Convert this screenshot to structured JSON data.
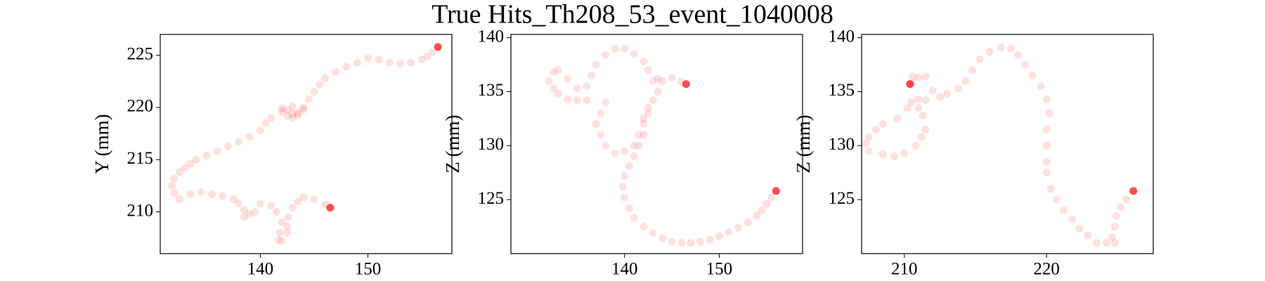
{
  "title": "True Hits_Th208_53_event_1040008",
  "chart_data": [
    {
      "type": "scatter",
      "ylabel": "Y (mm)",
      "xlim": [
        130.7,
        157.8
      ],
      "ylim": [
        206,
        227
      ],
      "xticks": [
        140,
        150
      ],
      "yticks": [
        210,
        215,
        220,
        225
      ],
      "series": [
        {
          "color": "#ff0000",
          "alpha": 0.12,
          "x": [
            156,
            155.5,
            155,
            154,
            153,
            152,
            151,
            150,
            149,
            148,
            147,
            146,
            145.5,
            145,
            144.5,
            144,
            143.5,
            143,
            142.5,
            142,
            142.5,
            143,
            143.5,
            144,
            143,
            142,
            141,
            140.5,
            140,
            139,
            138,
            137,
            136,
            135,
            134,
            133.5,
            133,
            132.5,
            132,
            131.8,
            132,
            132.5,
            133.5,
            134.5,
            135.5,
            136.5,
            137.5,
            138,
            138.5,
            139,
            138.5,
            139.5,
            140,
            141,
            141.5,
            142,
            141.8,
            141.7,
            142,
            142.5,
            142.5,
            142.6,
            143,
            143.5,
            144,
            145,
            146
          ],
          "y": [
            225.3,
            224.9,
            224.6,
            224.3,
            224.2,
            224.3,
            224.6,
            224.7,
            224.3,
            223.9,
            223.4,
            222.8,
            222.2,
            221.5,
            220.8,
            220,
            219.5,
            219.4,
            219.8,
            219.9,
            219.2,
            219,
            219.3,
            219.8,
            220.1,
            219.6,
            219,
            218.5,
            217.8,
            217.2,
            216.7,
            216.3,
            215.8,
            215.4,
            215,
            214.6,
            214.2,
            213.8,
            213.2,
            212.5,
            211.8,
            211.2,
            211.7,
            211.9,
            211.7,
            211.5,
            211.2,
            210.8,
            210.2,
            209.8,
            209.5,
            210,
            210.8,
            210.6,
            210,
            209,
            208,
            207.3,
            207.2,
            208,
            208.6,
            209.5,
            210.4,
            211,
            211.4,
            211.2,
            210.7
          ]
        },
        {
          "color": "#ff0000",
          "alpha": 0.7,
          "x": [
            156.5,
            146.5
          ],
          "y": [
            225.8,
            210.4
          ]
        }
      ]
    },
    {
      "type": "scatter",
      "ylabel": "Z (mm)",
      "xlim": [
        128,
        158.8
      ],
      "ylim": [
        120,
        140.3
      ],
      "xticks": [
        140,
        150
      ],
      "yticks": [
        125,
        130,
        135,
        140
      ],
      "series": [
        {
          "color": "#ff0000",
          "alpha": 0.12,
          "x": [
            155.5,
            155,
            154.5,
            154,
            153,
            152,
            151,
            150,
            149,
            148,
            147,
            146,
            145,
            144,
            143,
            142,
            141,
            140.5,
            140,
            139.8,
            140,
            140.5,
            141,
            141.5,
            142,
            142,
            142.5,
            143,
            143.5,
            143,
            143.5,
            144,
            145,
            146,
            142.5,
            142,
            141.5,
            141,
            140,
            139,
            138,
            137.5,
            137,
            137.5,
            138,
            136,
            135,
            134,
            133,
            132.5,
            132,
            132.5,
            133,
            134,
            135,
            136,
            136.5,
            137,
            138,
            139,
            140,
            141,
            142,
            142.5
          ],
          "y": [
            125.2,
            124.6,
            124,
            123.5,
            122.9,
            122.4,
            122,
            121.6,
            121.3,
            121.1,
            121,
            121,
            121.1,
            121.4,
            121.9,
            122.5,
            123.3,
            124.2,
            125.2,
            126.2,
            127.2,
            128.1,
            129,
            130,
            131,
            132.5,
            133.5,
            134.2,
            135,
            136,
            136.2,
            136,
            136.3,
            135.9,
            133,
            132,
            131,
            130,
            129.5,
            129.3,
            130,
            131,
            132,
            133,
            134,
            134.2,
            134.2,
            134.3,
            134.8,
            135.3,
            136,
            136.8,
            137,
            136.2,
            135.3,
            135.5,
            136.5,
            137.5,
            138.4,
            139,
            139,
            138.5,
            137.8,
            137
          ]
        },
        {
          "color": "#ff0000",
          "alpha": 0.7,
          "x": [
            156,
            146.5
          ],
          "y": [
            125.8,
            135.7
          ]
        }
      ]
    },
    {
      "type": "scatter",
      "ylabel": "Z (mm)",
      "xlim": [
        207,
        227.5
      ],
      "ylim": [
        120,
        140.3
      ],
      "xticks": [
        210,
        220
      ],
      "yticks": [
        125,
        130,
        135,
        140
      ],
      "series": [
        {
          "color": "#ff0000",
          "alpha": 0.12,
          "x": [
            225.6,
            225.2,
            224.9,
            224.8,
            224.6,
            224.8,
            224.2,
            223.5,
            222.9,
            222.3,
            221.8,
            221.2,
            220.7,
            220.3,
            220,
            220,
            220,
            220,
            220.2,
            220,
            219.6,
            219,
            218.5,
            218,
            217.5,
            216.8,
            216,
            215.3,
            214.8,
            214.3,
            213.8,
            213,
            212.5,
            212,
            211.5,
            211,
            210.5,
            211,
            210.5,
            210.2,
            209.5,
            208.5,
            208,
            207.5,
            207.3,
            207.5,
            208.5,
            209.3,
            210,
            210.8,
            211.2,
            211.5,
            211.3,
            211,
            210.6,
            211.5
          ],
          "y": [
            125,
            124.3,
            123.5,
            122.5,
            121.5,
            121,
            121,
            121,
            121.7,
            122.3,
            123.2,
            124,
            125,
            126,
            127.5,
            128.5,
            130,
            131.5,
            133,
            134.3,
            135.5,
            136.5,
            137.5,
            138.4,
            139,
            139.1,
            138.7,
            138,
            137,
            136,
            135.3,
            134.8,
            134.5,
            135.1,
            136.4,
            136.3,
            135.8,
            134.3,
            134,
            133.5,
            132.5,
            132,
            131.5,
            130.8,
            130.2,
            129.5,
            129.2,
            129,
            129.3,
            130,
            130.8,
            131.5,
            132.8,
            133.5,
            136.4,
            134.2
          ]
        },
        {
          "color": "#ff0000",
          "alpha": 0.7,
          "x": [
            226.1,
            210.4
          ],
          "y": [
            125.8,
            135.7
          ]
        }
      ]
    }
  ]
}
